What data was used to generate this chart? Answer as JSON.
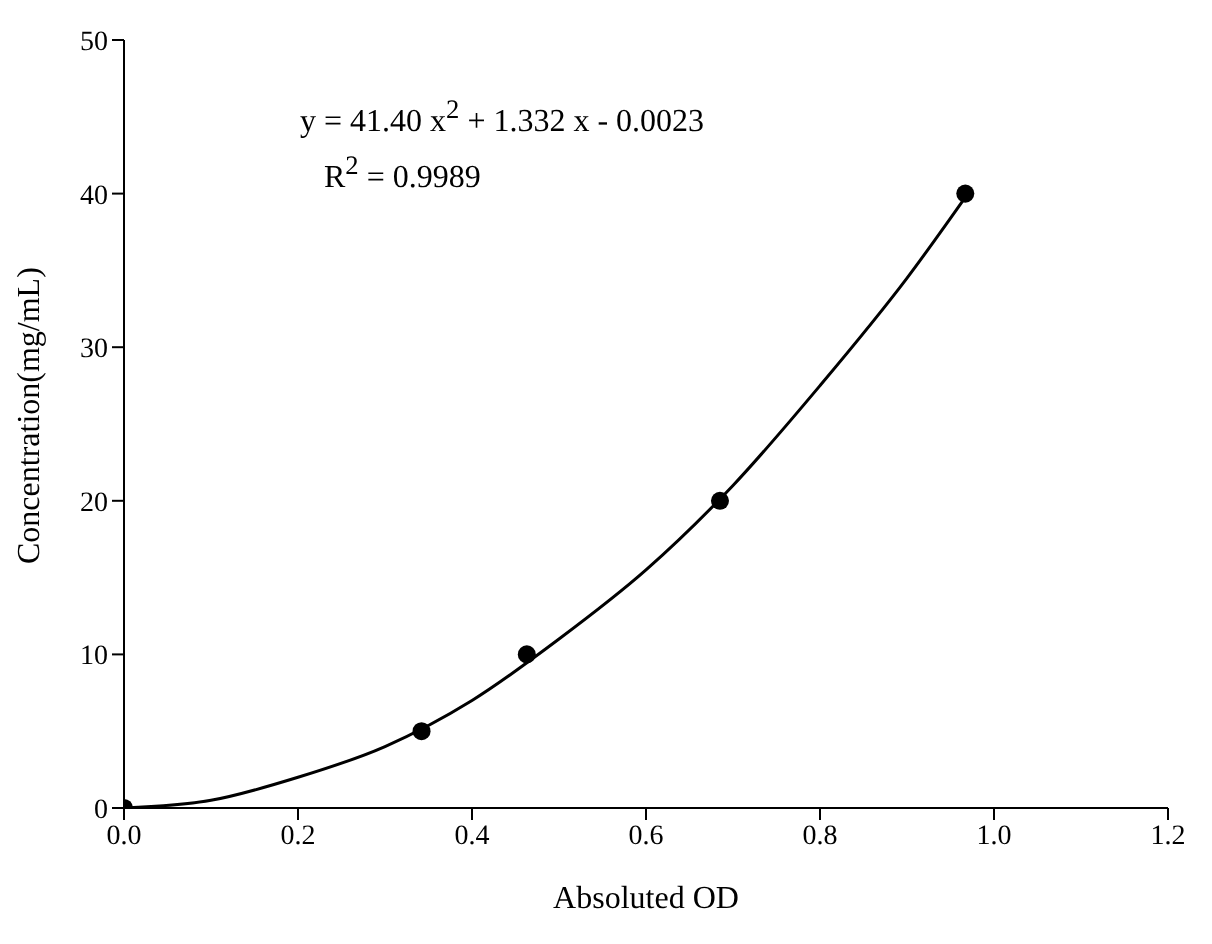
{
  "chart_data": {
    "type": "scatter",
    "xlabel": "Absoluted OD",
    "ylabel": "Concentration(mg/mL)",
    "xlim": [
      0,
      1.2
    ],
    "xticks": [
      {
        "value": 0,
        "label": "0.0"
      },
      {
        "value": 0.2,
        "label": "0.2"
      },
      {
        "value": 0.4,
        "label": "0.4"
      },
      {
        "value": 0.6,
        "label": "0.6"
      },
      {
        "value": 0.8,
        "label": "0.8"
      },
      {
        "value": 1,
        "label": "1.0"
      },
      {
        "value": 1.2,
        "label": "1.2"
      }
    ],
    "ylim": [
      0,
      50
    ],
    "yticks": [
      0,
      10,
      20,
      30,
      40,
      50
    ],
    "grid": false,
    "annotations": [
      "y = 41.40 x$^{2}$ + 1.332 x - 0.0023",
      "R$^{2}$ = 0.9989"
    ],
    "series": [
      {
        "color": "#000000",
        "marker": "circle",
        "x": [
          0,
          0.342,
          0.463,
          0.685,
          0.967
        ],
        "values": [
          0,
          5,
          10,
          20,
          40
        ]
      },
      {
        "type": "line",
        "color": "#000000",
        "marker": "none",
        "line_style": "solid",
        "x": [
          0,
          0.1,
          0.2,
          0.3,
          0.4,
          0.5,
          0.6,
          0.7,
          0.8,
          0.9,
          0.97
        ],
        "values": [
          0,
          0.5,
          2,
          4,
          7,
          11,
          15.5,
          21,
          27.5,
          34.5,
          40
        ]
      }
    ]
  }
}
